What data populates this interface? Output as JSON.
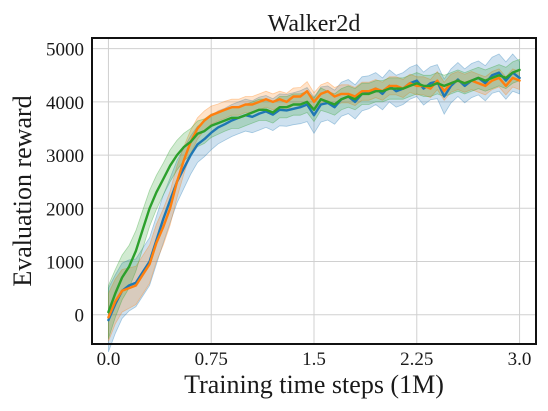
{
  "chart_data": {
    "type": "line",
    "title": "Walker2d",
    "xlabel": "Training time steps (1M)",
    "ylabel": "Evaluation reward",
    "xlim": [
      -0.12,
      3.12
    ],
    "ylim": [
      -550,
      5200
    ],
    "xticks": [
      0.0,
      0.75,
      1.5,
      2.25,
      3.0
    ],
    "xtick_labels": [
      "0.0",
      "0.75",
      "1.5",
      "2.25",
      "3.0"
    ],
    "yticks": [
      0,
      1000,
      2000,
      3000,
      4000,
      5000
    ],
    "ytick_labels": [
      "0",
      "1000",
      "2000",
      "3000",
      "4000",
      "5000"
    ],
    "grid": true,
    "legend": "none",
    "series": [
      {
        "color": "#1f77b4",
        "band_color": "#1f77b4",
        "x": [
          0.0,
          0.05,
          0.1,
          0.15,
          0.2,
          0.25,
          0.3,
          0.35,
          0.4,
          0.45,
          0.5,
          0.55,
          0.6,
          0.65,
          0.7,
          0.75,
          0.8,
          0.85,
          0.9,
          0.95,
          1.0,
          1.05,
          1.1,
          1.15,
          1.2,
          1.25,
          1.3,
          1.35,
          1.4,
          1.45,
          1.5,
          1.55,
          1.6,
          1.65,
          1.7,
          1.75,
          1.8,
          1.85,
          1.9,
          1.95,
          2.0,
          2.05,
          2.1,
          2.15,
          2.2,
          2.25,
          2.3,
          2.35,
          2.4,
          2.45,
          2.5,
          2.55,
          2.6,
          2.65,
          2.7,
          2.75,
          2.8,
          2.85,
          2.9,
          2.95,
          3.0
        ],
        "y": [
          -100,
          200,
          450,
          550,
          600,
          800,
          1000,
          1400,
          1800,
          2150,
          2500,
          2750,
          3000,
          3200,
          3300,
          3420,
          3520,
          3580,
          3650,
          3700,
          3750,
          3720,
          3780,
          3820,
          3760,
          3850,
          3840,
          3870,
          3900,
          3950,
          3750,
          3950,
          3980,
          3900,
          4050,
          4100,
          4000,
          4150,
          4180,
          4250,
          4150,
          4300,
          4200,
          4250,
          4350,
          4400,
          4250,
          4350,
          4380,
          4100,
          4300,
          4420,
          4300,
          4400,
          4450,
          4350,
          4500,
          4550,
          4400,
          4550,
          4450
        ],
        "band": [
          600,
          550,
          520,
          480,
          450,
          450,
          450,
          450,
          450,
          420,
          400,
          380,
          360,
          340,
          330,
          320,
          310,
          300,
          300,
          300,
          300,
          300,
          310,
          300,
          300,
          300,
          300,
          300,
          310,
          320,
          340,
          330,
          320,
          320,
          320,
          320,
          320,
          320,
          310,
          300,
          300,
          300,
          300,
          300,
          300,
          300,
          310,
          310,
          320,
          330,
          320,
          320,
          320,
          320,
          320,
          330,
          340,
          350,
          350,
          350,
          300
        ]
      },
      {
        "color": "#ff7f0e",
        "band_color": "#ff7f0e",
        "x": [
          0.0,
          0.05,
          0.1,
          0.15,
          0.2,
          0.25,
          0.3,
          0.35,
          0.4,
          0.45,
          0.5,
          0.55,
          0.6,
          0.65,
          0.7,
          0.75,
          0.8,
          0.85,
          0.9,
          0.95,
          1.0,
          1.05,
          1.1,
          1.15,
          1.2,
          1.25,
          1.3,
          1.35,
          1.4,
          1.45,
          1.5,
          1.55,
          1.6,
          1.65,
          1.7,
          1.75,
          1.8,
          1.85,
          1.9,
          1.95,
          2.0,
          2.05,
          2.1,
          2.15,
          2.2,
          2.25,
          2.3,
          2.35,
          2.4,
          2.45,
          2.5,
          2.55,
          2.6,
          2.65,
          2.7,
          2.75,
          2.8,
          2.85,
          2.9,
          2.95,
          3.0
        ],
        "y": [
          -50,
          250,
          450,
          500,
          550,
          750,
          950,
          1350,
          1650,
          2000,
          2500,
          2900,
          3250,
          3500,
          3650,
          3750,
          3800,
          3850,
          3900,
          3900,
          3950,
          3950,
          4000,
          4050,
          4000,
          4050,
          4000,
          4100,
          4100,
          4200,
          4000,
          4150,
          4200,
          4100,
          4150,
          4150,
          4100,
          4200,
          4200,
          4250,
          4200,
          4300,
          4300,
          4250,
          4350,
          4300,
          4300,
          4250,
          4400,
          4200,
          4350,
          4400,
          4350,
          4400,
          4350,
          4300,
          4400,
          4450,
          4300,
          4450,
          4400
        ],
        "band": [
          450,
          420,
          400,
          380,
          360,
          360,
          360,
          350,
          340,
          320,
          300,
          260,
          220,
          200,
          180,
          170,
          160,
          160,
          150,
          150,
          150,
          150,
          150,
          150,
          150,
          150,
          160,
          160,
          170,
          180,
          170,
          170,
          170,
          170,
          170,
          170,
          170,
          170,
          170,
          170,
          170,
          170,
          170,
          170,
          170,
          170,
          170,
          170,
          170,
          170,
          170,
          170,
          170,
          170,
          170,
          170,
          170,
          170,
          170,
          170,
          170
        ]
      },
      {
        "color": "#2ca02c",
        "band_color": "#2ca02c",
        "x": [
          0.0,
          0.05,
          0.1,
          0.15,
          0.2,
          0.25,
          0.3,
          0.35,
          0.4,
          0.45,
          0.5,
          0.55,
          0.6,
          0.65,
          0.7,
          0.75,
          0.8,
          0.85,
          0.9,
          0.95,
          1.0,
          1.05,
          1.1,
          1.15,
          1.2,
          1.25,
          1.3,
          1.35,
          1.4,
          1.45,
          1.5,
          1.55,
          1.6,
          1.65,
          1.7,
          1.75,
          1.8,
          1.85,
          1.9,
          1.95,
          2.0,
          2.05,
          2.1,
          2.15,
          2.2,
          2.25,
          2.3,
          2.35,
          2.4,
          2.45,
          2.5,
          2.55,
          2.6,
          2.65,
          2.7,
          2.75,
          2.8,
          2.85,
          2.9,
          2.95,
          3.0
        ],
        "y": [
          50,
          400,
          700,
          900,
          1200,
          1600,
          2000,
          2300,
          2550,
          2800,
          3000,
          3150,
          3250,
          3400,
          3450,
          3550,
          3600,
          3650,
          3700,
          3700,
          3750,
          3800,
          3850,
          3850,
          3800,
          3900,
          3900,
          3950,
          3950,
          4000,
          3850,
          4050,
          4000,
          3950,
          4050,
          4100,
          4050,
          4150,
          4150,
          4200,
          4200,
          4250,
          4250,
          4250,
          4300,
          4350,
          4300,
          4300,
          4350,
          4300,
          4350,
          4400,
          4350,
          4400,
          4450,
          4400,
          4450,
          4500,
          4450,
          4550,
          4600
        ],
        "band": [
          500,
          450,
          420,
          400,
          380,
          360,
          340,
          320,
          300,
          300,
          280,
          260,
          250,
          240,
          230,
          220,
          210,
          200,
          200,
          200,
          200,
          200,
          200,
          200,
          200,
          200,
          200,
          200,
          200,
          200,
          220,
          210,
          200,
          200,
          200,
          200,
          200,
          200,
          200,
          200,
          200,
          200,
          200,
          200,
          200,
          200,
          200,
          200,
          200,
          200,
          200,
          200,
          200,
          200,
          200,
          200,
          200,
          200,
          200,
          200,
          200
        ]
      }
    ]
  }
}
